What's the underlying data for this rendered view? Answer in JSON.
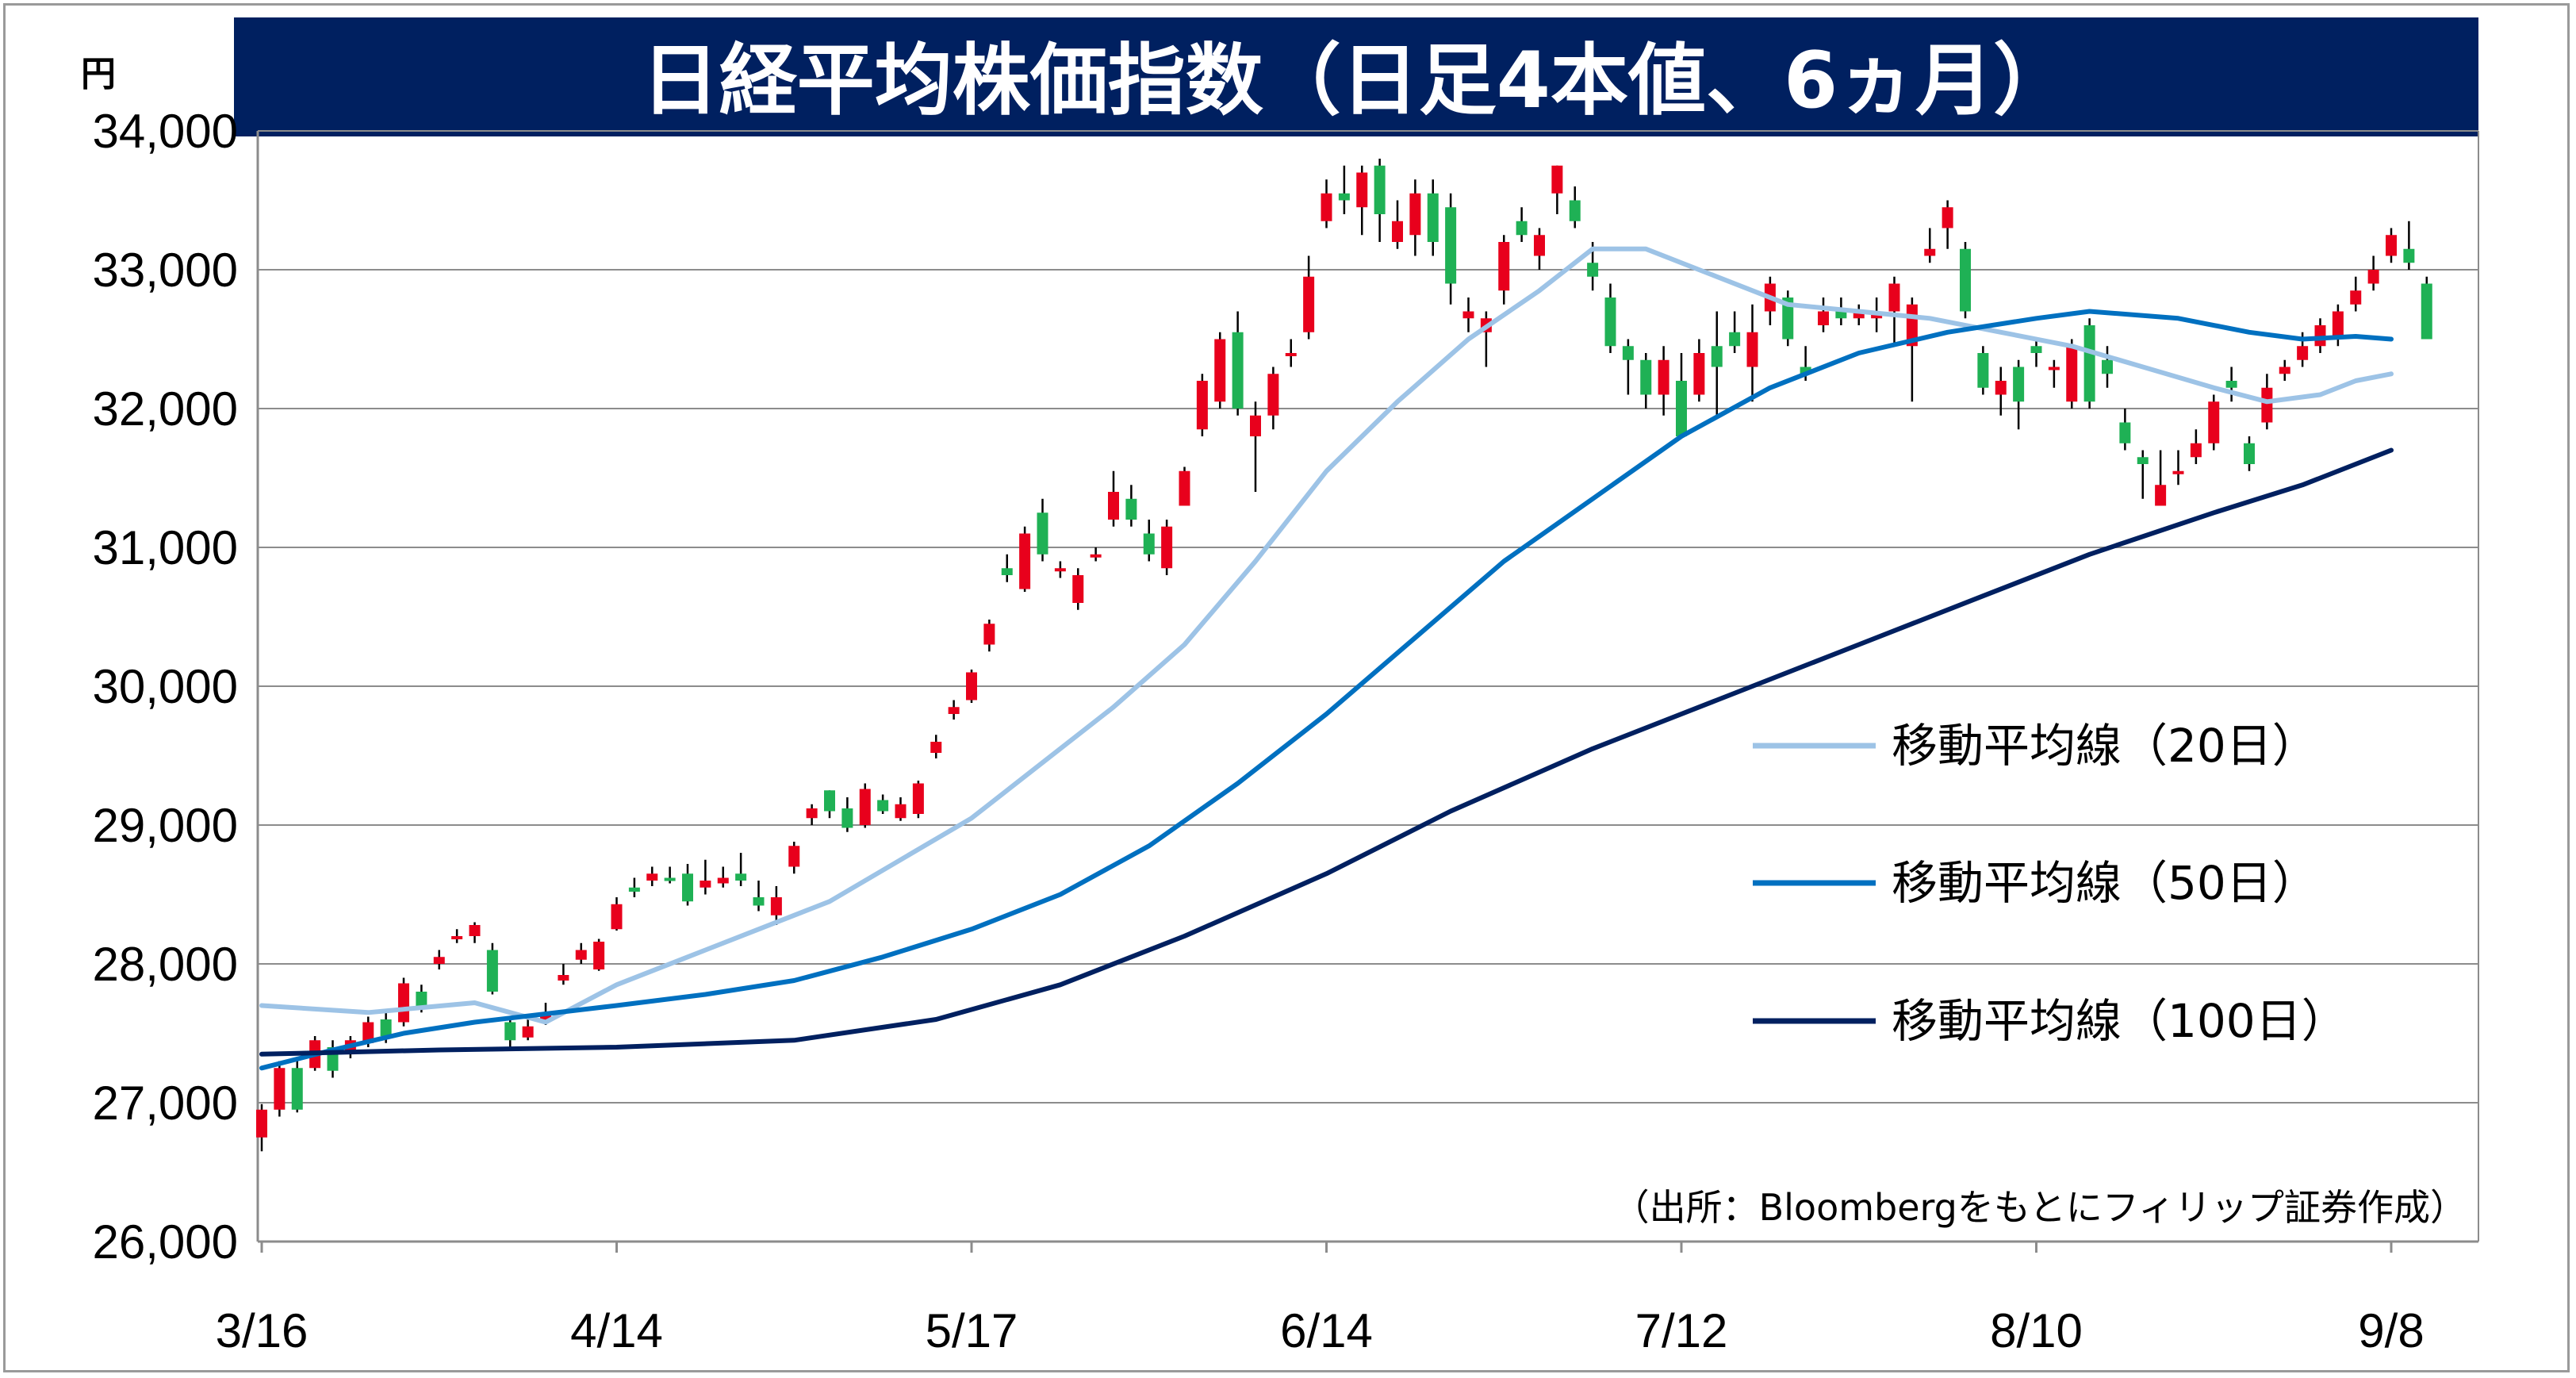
{
  "chart_data": {
    "type": "candlestick",
    "title": "日経平均株価指数（日足4本値、6ヵ月）",
    "unit": "円",
    "source": "（出所：Bloombergをもとにフィリップ証券作成）",
    "ylim": [
      26000,
      34000
    ],
    "yticks": [
      26000,
      27000,
      28000,
      29000,
      30000,
      31000,
      32000,
      33000,
      34000
    ],
    "ytick_labels": [
      "26,000",
      "27,000",
      "28,000",
      "29,000",
      "30,000",
      "31,000",
      "32,000",
      "33,000",
      "34,000"
    ],
    "xticks": [
      {
        "index": 0,
        "label": "3/16"
      },
      {
        "index": 20,
        "label": "4/14"
      },
      {
        "index": 40,
        "label": "5/17"
      },
      {
        "index": 60,
        "label": "6/14"
      },
      {
        "index": 80,
        "label": "7/12"
      },
      {
        "index": 100,
        "label": "8/10"
      },
      {
        "index": 120,
        "label": "9/8"
      }
    ],
    "up_color": "#e8001c",
    "down_color": "#1fb155",
    "candles": [
      [
        26750,
        26950,
        26650,
        26990
      ],
      [
        26950,
        27250,
        26900,
        27300
      ],
      [
        27250,
        26950,
        26930,
        27330
      ],
      [
        27250,
        27450,
        27230,
        27480
      ],
      [
        27400,
        27230,
        27180,
        27450
      ],
      [
        27380,
        27450,
        27320,
        27480
      ],
      [
        27430,
        27580,
        27400,
        27620
      ],
      [
        27600,
        27480,
        27430,
        27650
      ],
      [
        27580,
        27860,
        27550,
        27900
      ],
      [
        27800,
        27680,
        27650,
        27850
      ],
      [
        28000,
        28050,
        27960,
        28100
      ],
      [
        28180,
        28200,
        28150,
        28250
      ],
      [
        28200,
        28280,
        28150,
        28300
      ],
      [
        28100,
        27800,
        27780,
        28150
      ],
      [
        27580,
        27450,
        27380,
        27620
      ],
      [
        27470,
        27550,
        27450,
        27600
      ],
      [
        27600,
        27650,
        27560,
        27720
      ],
      [
        27880,
        27920,
        27850,
        28000
      ],
      [
        28030,
        28100,
        28000,
        28150
      ],
      [
        27960,
        28160,
        27950,
        28180
      ],
      [
        28250,
        28430,
        28240,
        28480
      ],
      [
        28550,
        28520,
        28480,
        28620
      ],
      [
        28600,
        28650,
        28560,
        28700
      ],
      [
        28620,
        28600,
        28580,
        28700
      ],
      [
        28650,
        28450,
        28420,
        28720
      ],
      [
        28550,
        28600,
        28500,
        28750
      ],
      [
        28580,
        28620,
        28550,
        28700
      ],
      [
        28650,
        28600,
        28560,
        28800
      ],
      [
        28480,
        28420,
        28380,
        28600
      ],
      [
        28350,
        28480,
        28280,
        28560
      ],
      [
        28700,
        28850,
        28650,
        28880
      ],
      [
        29050,
        29120,
        29000,
        29150
      ],
      [
        29250,
        29100,
        29050,
        29250
      ],
      [
        29120,
        28980,
        28950,
        29200
      ],
      [
        29000,
        29260,
        28980,
        29300
      ],
      [
        29180,
        29100,
        29080,
        29220
      ],
      [
        29050,
        29150,
        29030,
        29200
      ],
      [
        29080,
        29300,
        29050,
        29320
      ],
      [
        29520,
        29600,
        29480,
        29650
      ],
      [
        29800,
        29850,
        29760,
        29900
      ],
      [
        29900,
        30100,
        29880,
        30120
      ],
      [
        30300,
        30450,
        30250,
        30480
      ],
      [
        30850,
        30800,
        30750,
        30950
      ],
      [
        30700,
        31100,
        30680,
        31150
      ],
      [
        31250,
        30950,
        30900,
        31350
      ],
      [
        30850,
        30850,
        30780,
        30900
      ],
      [
        30600,
        30800,
        30550,
        30850
      ],
      [
        30950,
        30950,
        30900,
        31000
      ],
      [
        31200,
        31400,
        31150,
        31550
      ],
      [
        31350,
        31200,
        31150,
        31450
      ],
      [
        31100,
        30950,
        30900,
        31200
      ],
      [
        30850,
        31150,
        30800,
        31200
      ],
      [
        31300,
        31550,
        31300,
        31580
      ],
      [
        31850,
        32200,
        31800,
        32250
      ],
      [
        32050,
        32500,
        32000,
        32550
      ],
      [
        32550,
        32000,
        31950,
        32700
      ],
      [
        31800,
        31950,
        31400,
        32050
      ],
      [
        31950,
        32250,
        31850,
        32300
      ],
      [
        32380,
        32400,
        32300,
        32500
      ],
      [
        32550,
        32950,
        32500,
        33100
      ],
      [
        33350,
        33550,
        33300,
        33650
      ],
      [
        33550,
        33500,
        33400,
        33750
      ],
      [
        33450,
        33700,
        33250,
        33750
      ],
      [
        33750,
        33400,
        33200,
        33800
      ],
      [
        33200,
        33350,
        33150,
        33500
      ],
      [
        33250,
        33550,
        33100,
        33650
      ],
      [
        33550,
        33200,
        33100,
        33650
      ],
      [
        33450,
        32900,
        32750,
        33550
      ],
      [
        32650,
        32700,
        32550,
        32800
      ],
      [
        32550,
        32650,
        32300,
        32700
      ],
      [
        32850,
        33200,
        32750,
        33250
      ],
      [
        33350,
        33250,
        33200,
        33450
      ],
      [
        33100,
        33250,
        33000,
        33300
      ],
      [
        33550,
        33750,
        33400,
        33750
      ],
      [
        33500,
        33350,
        33300,
        33600
      ],
      [
        33050,
        32950,
        32850,
        33200
      ],
      [
        32800,
        32450,
        32400,
        32900
      ],
      [
        32450,
        32350,
        32100,
        32500
      ],
      [
        32350,
        32100,
        32000,
        32400
      ],
      [
        32100,
        32350,
        31950,
        32450
      ],
      [
        32200,
        31800,
        31800,
        32400
      ],
      [
        32100,
        32400,
        32050,
        32500
      ],
      [
        32450,
        32300,
        31950,
        32700
      ],
      [
        32550,
        32450,
        32400,
        32700
      ],
      [
        32300,
        32550,
        32050,
        32750
      ],
      [
        32700,
        32900,
        32600,
        32950
      ],
      [
        32800,
        32500,
        32450,
        32850
      ],
      [
        32300,
        32250,
        32200,
        32450
      ],
      [
        32600,
        32700,
        32550,
        32800
      ],
      [
        32700,
        32650,
        32600,
        32800
      ],
      [
        32650,
        32700,
        32600,
        32750
      ],
      [
        32650,
        32700,
        32550,
        32800
      ],
      [
        32700,
        32900,
        32450,
        32950
      ],
      [
        32450,
        32750,
        32050,
        32800
      ],
      [
        33100,
        33150,
        33050,
        33300
      ],
      [
        33300,
        33450,
        33150,
        33500
      ],
      [
        33150,
        32700,
        32650,
        33200
      ],
      [
        32400,
        32150,
        32100,
        32450
      ],
      [
        32100,
        32200,
        31950,
        32300
      ],
      [
        32300,
        32050,
        31850,
        32350
      ],
      [
        32450,
        32400,
        32300,
        32500
      ],
      [
        32300,
        32300,
        32150,
        32350
      ],
      [
        32050,
        32450,
        32000,
        32500
      ],
      [
        32600,
        32050,
        32000,
        32650
      ],
      [
        32350,
        32250,
        32150,
        32450
      ],
      [
        31900,
        31750,
        31700,
        32000
      ],
      [
        31650,
        31600,
        31350,
        31700
      ],
      [
        31300,
        31450,
        31300,
        31700
      ],
      [
        31550,
        31550,
        31450,
        31700
      ],
      [
        31650,
        31750,
        31600,
        31850
      ],
      [
        31750,
        32050,
        31700,
        32100
      ],
      [
        32200,
        32150,
        32050,
        32300
      ],
      [
        31750,
        31600,
        31550,
        31800
      ],
      [
        31900,
        32150,
        31850,
        32250
      ],
      [
        32250,
        32300,
        32200,
        32350
      ],
      [
        32350,
        32450,
        32300,
        32550
      ],
      [
        32450,
        32600,
        32400,
        32650
      ],
      [
        32500,
        32700,
        32450,
        32750
      ],
      [
        32750,
        32850,
        32700,
        32950
      ],
      [
        32900,
        33000,
        32850,
        33100
      ],
      [
        33100,
        33250,
        33050,
        33300
      ],
      [
        33150,
        33050,
        33000,
        33350
      ],
      [
        32900,
        32500,
        32550,
        32950
      ]
    ],
    "series": [
      {
        "name": "移動平均線（20日）",
        "color": "#9dc3e6",
        "width": 6,
        "points": [
          [
            0,
            27700
          ],
          [
            6,
            27650
          ],
          [
            12,
            27720
          ],
          [
            16,
            27580
          ],
          [
            20,
            27850
          ],
          [
            24,
            28050
          ],
          [
            28,
            28250
          ],
          [
            32,
            28450
          ],
          [
            36,
            28750
          ],
          [
            40,
            29050
          ],
          [
            44,
            29450
          ],
          [
            48,
            29850
          ],
          [
            52,
            30300
          ],
          [
            56,
            30900
          ],
          [
            60,
            31550
          ],
          [
            64,
            32050
          ],
          [
            68,
            32500
          ],
          [
            72,
            32850
          ],
          [
            75,
            33150
          ],
          [
            78,
            33150
          ],
          [
            82,
            32950
          ],
          [
            86,
            32750
          ],
          [
            90,
            32700
          ],
          [
            94,
            32650
          ],
          [
            98,
            32550
          ],
          [
            102,
            32450
          ],
          [
            106,
            32300
          ],
          [
            110,
            32150
          ],
          [
            113,
            32050
          ],
          [
            116,
            32100
          ],
          [
            118,
            32200
          ],
          [
            120,
            32250
          ]
        ]
      },
      {
        "name": "移動平均線（50日）",
        "color": "#0070c0",
        "width": 6,
        "points": [
          [
            0,
            27250
          ],
          [
            4,
            27380
          ],
          [
            8,
            27500
          ],
          [
            12,
            27580
          ],
          [
            16,
            27640
          ],
          [
            20,
            27700
          ],
          [
            25,
            27780
          ],
          [
            30,
            27880
          ],
          [
            35,
            28050
          ],
          [
            40,
            28250
          ],
          [
            45,
            28500
          ],
          [
            50,
            28850
          ],
          [
            55,
            29300
          ],
          [
            60,
            29800
          ],
          [
            65,
            30350
          ],
          [
            70,
            30900
          ],
          [
            75,
            31350
          ],
          [
            80,
            31800
          ],
          [
            85,
            32150
          ],
          [
            90,
            32400
          ],
          [
            95,
            32550
          ],
          [
            100,
            32650
          ],
          [
            103,
            32700
          ],
          [
            108,
            32650
          ],
          [
            112,
            32550
          ],
          [
            115,
            32500
          ],
          [
            118,
            32520
          ],
          [
            120,
            32500
          ]
        ]
      },
      {
        "name": "移動平均線（100日）",
        "color": "#002060",
        "width": 6,
        "points": [
          [
            0,
            27350
          ],
          [
            10,
            27380
          ],
          [
            20,
            27400
          ],
          [
            30,
            27450
          ],
          [
            38,
            27600
          ],
          [
            45,
            27850
          ],
          [
            52,
            28200
          ],
          [
            60,
            28650
          ],
          [
            67,
            29100
          ],
          [
            75,
            29550
          ],
          [
            82,
            29900
          ],
          [
            90,
            30300
          ],
          [
            97,
            30650
          ],
          [
            103,
            30950
          ],
          [
            110,
            31250
          ],
          [
            115,
            31450
          ],
          [
            120,
            31700
          ]
        ]
      }
    ]
  }
}
